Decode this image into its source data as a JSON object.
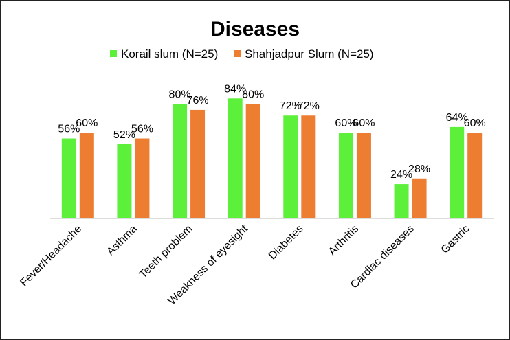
{
  "chart_data": {
    "type": "bar",
    "title": "Diseases",
    "categories": [
      "Fever/Headache",
      "Asthma",
      "Teeth problem",
      "Weakness of eyesight",
      "Diabetes",
      "Arthritis",
      "Cardiac diseases",
      "Gastric"
    ],
    "series": [
      {
        "name": "Korail slum (N=25)",
        "color": "#5CF03A",
        "values": [
          56,
          52,
          80,
          84,
          72,
          60,
          24,
          64
        ]
      },
      {
        "name": "Shahjadpur Slum (N=25)",
        "color": "#ED7D31",
        "values": [
          60,
          56,
          76,
          80,
          72,
          60,
          28,
          60
        ]
      }
    ],
    "value_suffix": "%",
    "ylim": [
      0,
      100
    ],
    "grid": false,
    "legend_position": "top",
    "data_labels": true
  }
}
